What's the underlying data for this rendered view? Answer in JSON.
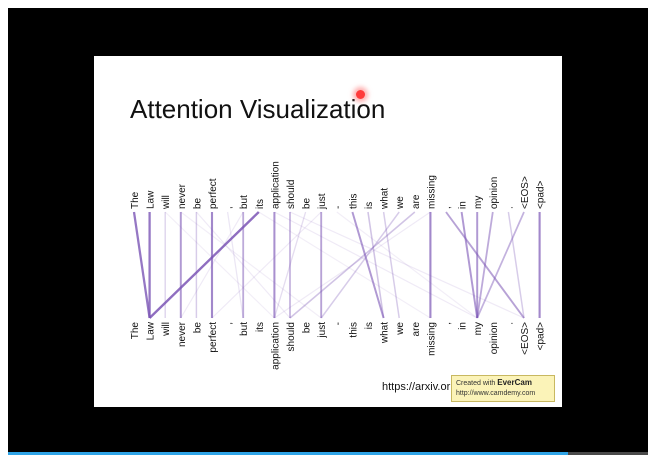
{
  "slide": {
    "title": "Attention Visualization",
    "tokens": [
      "The",
      "Law",
      "will",
      "never",
      "be",
      "perfect",
      ",",
      "but",
      "its",
      "application",
      "should",
      "be",
      "just",
      "-",
      "this",
      "is",
      "what",
      "we",
      "are",
      "missing",
      ",",
      "in",
      "my",
      "opinion",
      ".",
      "<EOS>",
      "<pad>"
    ],
    "reference_text": "https://arxiv.or",
    "attention_links": [
      {
        "from": 0,
        "to": 1,
        "w": 0.8
      },
      {
        "from": 1,
        "to": 1,
        "w": 0.8
      },
      {
        "from": 2,
        "to": 2,
        "w": 0.25
      },
      {
        "from": 3,
        "to": 3,
        "w": 0.6
      },
      {
        "from": 4,
        "to": 4,
        "w": 0.3
      },
      {
        "from": 5,
        "to": 5,
        "w": 0.7
      },
      {
        "from": 6,
        "to": 7,
        "w": 0.15
      },
      {
        "from": 7,
        "to": 7,
        "w": 0.5
      },
      {
        "from": 8,
        "to": 1,
        "w": 0.85
      },
      {
        "from": 9,
        "to": 9,
        "w": 0.65
      },
      {
        "from": 10,
        "to": 10,
        "w": 0.45
      },
      {
        "from": 11,
        "to": 9,
        "w": 0.2
      },
      {
        "from": 12,
        "to": 12,
        "w": 0.55
      },
      {
        "from": 14,
        "to": 16,
        "w": 0.6
      },
      {
        "from": 15,
        "to": 16,
        "w": 0.35
      },
      {
        "from": 16,
        "to": 17,
        "w": 0.3
      },
      {
        "from": 17,
        "to": 12,
        "w": 0.3
      },
      {
        "from": 18,
        "to": 10,
        "w": 0.35
      },
      {
        "from": 19,
        "to": 19,
        "w": 0.7
      },
      {
        "from": 21,
        "to": 22,
        "w": 0.6
      },
      {
        "from": 22,
        "to": 22,
        "w": 0.6
      },
      {
        "from": 23,
        "to": 22,
        "w": 0.5
      },
      {
        "from": 24,
        "to": 25,
        "w": 0.3
      },
      {
        "from": 25,
        "to": 22,
        "w": 0.45
      },
      {
        "from": 26,
        "to": 26,
        "w": 0.7
      },
      {
        "from": 20,
        "to": 25,
        "w": 0.55
      },
      {
        "from": 3,
        "to": 12,
        "w": 0.1
      },
      {
        "from": 9,
        "to": 22,
        "w": 0.12
      },
      {
        "from": 10,
        "to": 25,
        "w": 0.12
      },
      {
        "from": 8,
        "to": 19,
        "w": 0.1
      },
      {
        "from": 2,
        "to": 9,
        "w": 0.1
      },
      {
        "from": 4,
        "to": 10,
        "w": 0.12
      },
      {
        "from": 7,
        "to": 3,
        "w": 0.12
      },
      {
        "from": 12,
        "to": 5,
        "w": 0.12
      },
      {
        "from": 13,
        "to": 22,
        "w": 0.1
      },
      {
        "from": 19,
        "to": 9,
        "w": 0.12
      }
    ]
  },
  "watermark": {
    "line1_prefix": "Created with ",
    "brand": "EverCam",
    "url": "http://www.camdemy.com"
  },
  "colors": {
    "attention": "#7b55b5",
    "progress": "#2fa4e7"
  }
}
